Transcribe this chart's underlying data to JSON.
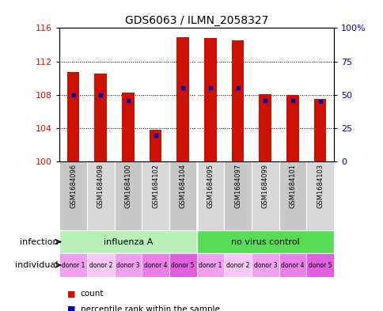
{
  "title": "GDS6063 / ILMN_2058327",
  "samples": [
    "GSM1684096",
    "GSM1684098",
    "GSM1684100",
    "GSM1684102",
    "GSM1684104",
    "GSM1684095",
    "GSM1684097",
    "GSM1684099",
    "GSM1684101",
    "GSM1684103"
  ],
  "count_values": [
    110.7,
    110.5,
    108.3,
    103.8,
    114.9,
    114.8,
    114.5,
    108.1,
    108.0,
    107.5
  ],
  "percentile_values": [
    50,
    50,
    46,
    20,
    55,
    55,
    55,
    46,
    46,
    45
  ],
  "ylim": [
    100,
    116
  ],
  "yticks_left": [
    100,
    104,
    108,
    112,
    116
  ],
  "yticks_right": [
    0,
    25,
    50,
    75,
    100
  ],
  "infection_groups": [
    {
      "label": "influenza A",
      "start": 0,
      "end": 5,
      "color": "#b8f0b8"
    },
    {
      "label": "no virus control",
      "start": 5,
      "end": 10,
      "color": "#55dd55"
    }
  ],
  "individual_labels": [
    "donor 1",
    "donor 2",
    "donor 3",
    "donor 4",
    "donor 5",
    "donor 1",
    "donor 2",
    "donor 3",
    "donor 4",
    "donor 5"
  ],
  "ind_colors": [
    "#f0a0f0",
    "#f8c8f8",
    "#f0a0f0",
    "#e880e8",
    "#e060e0",
    "#f0a0f0",
    "#f8c8f8",
    "#f0a0f0",
    "#e880e8",
    "#e060e0"
  ],
  "bar_color": "#cc1100",
  "dot_color": "#0000bb",
  "bar_width": 0.45,
  "tick_color_left": "#cc1100",
  "tick_color_right": "#0000bb",
  "sample_bg_even": "#c8c8c8",
  "sample_bg_odd": "#d8d8d8",
  "legend_count": "count",
  "legend_pct": "percentile rank within the sample",
  "infection_label": "infection",
  "individual_label": "individual"
}
